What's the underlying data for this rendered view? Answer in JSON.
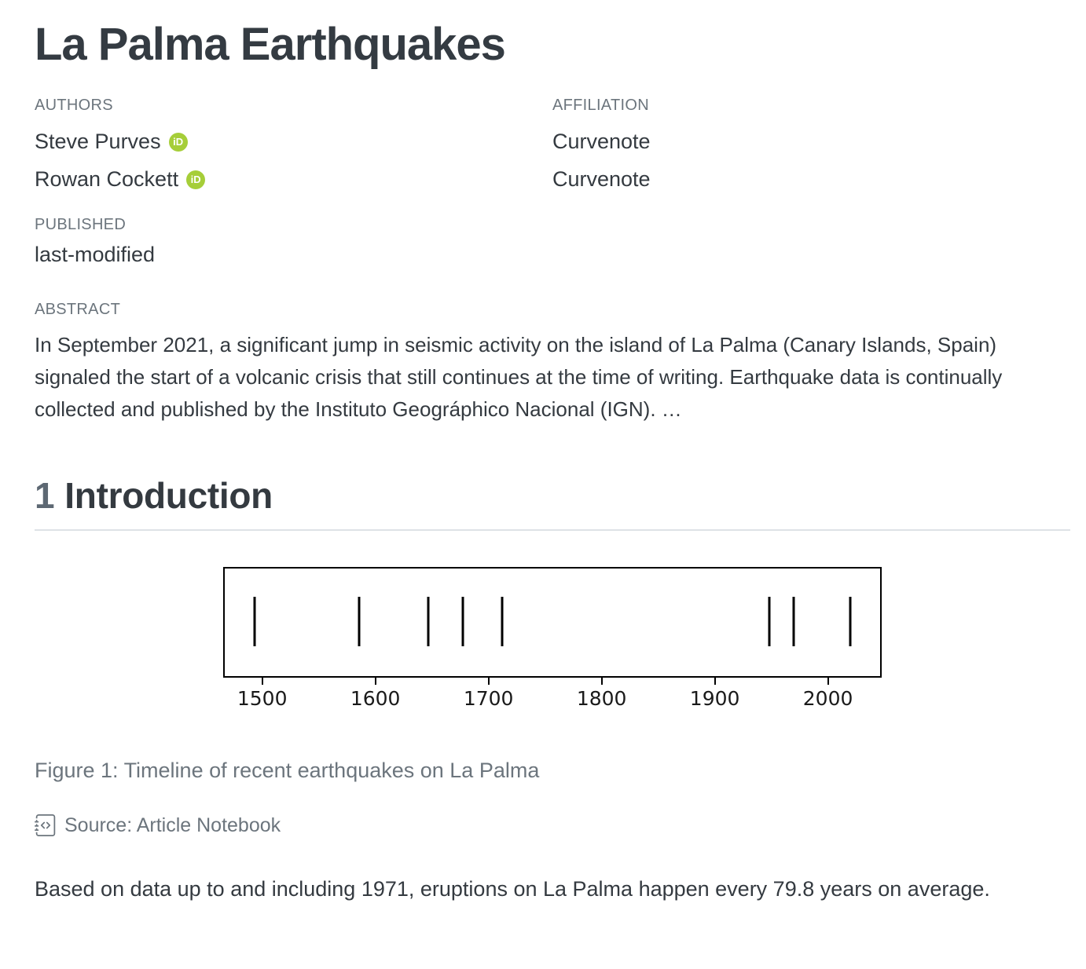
{
  "header": {
    "title": "La Palma Earthquakes",
    "authors_label": "AUTHORS",
    "affiliation_label": "AFFILIATION",
    "authors": [
      {
        "name": "Steve Purves",
        "affiliation": "Curvenote"
      },
      {
        "name": "Rowan Cockett",
        "affiliation": "Curvenote"
      }
    ],
    "published_label": "PUBLISHED",
    "published_value": "last-modified",
    "abstract_label": "ABSTRACT",
    "abstract_text": "In September 2021, a significant jump in seismic activity on the island of La Palma (Canary Islands, Spain) signaled the start of a volcanic crisis that still continues at the time of writing. Earthquake data is continually collected and published by the Instituto Geográphico Nacional (IGN). …"
  },
  "section": {
    "number": "1",
    "title": "Introduction"
  },
  "figure": {
    "caption": "Figure 1: Timeline of recent earthquakes on La Palma",
    "source_label": "Source: Article Notebook"
  },
  "paragraph": "Based on data up to and including 1971, eruptions on La Palma happen every 79.8 years on average.",
  "icons": {
    "orcid_text": "iD"
  },
  "colors": {
    "orcid_green": "#a6ce39",
    "heading": "#343a40",
    "muted": "#6c757d",
    "rule": "#dee2e6",
    "plot_line": "#000000"
  },
  "chart_data": {
    "type": "scatter",
    "subtype": "event-timeline",
    "title": "",
    "xlabel": "",
    "ylabel": "",
    "x": [
      1492,
      1585,
      1646,
      1677,
      1712,
      1949,
      1971,
      2021
    ],
    "xticks": [
      1500,
      1600,
      1700,
      1800,
      1900,
      2000
    ],
    "xlim": [
      1465.5,
      2047.5
    ],
    "grid": false,
    "legend": false,
    "description": "Event plot: one vertical tick per recorded La Palma eruption year"
  }
}
